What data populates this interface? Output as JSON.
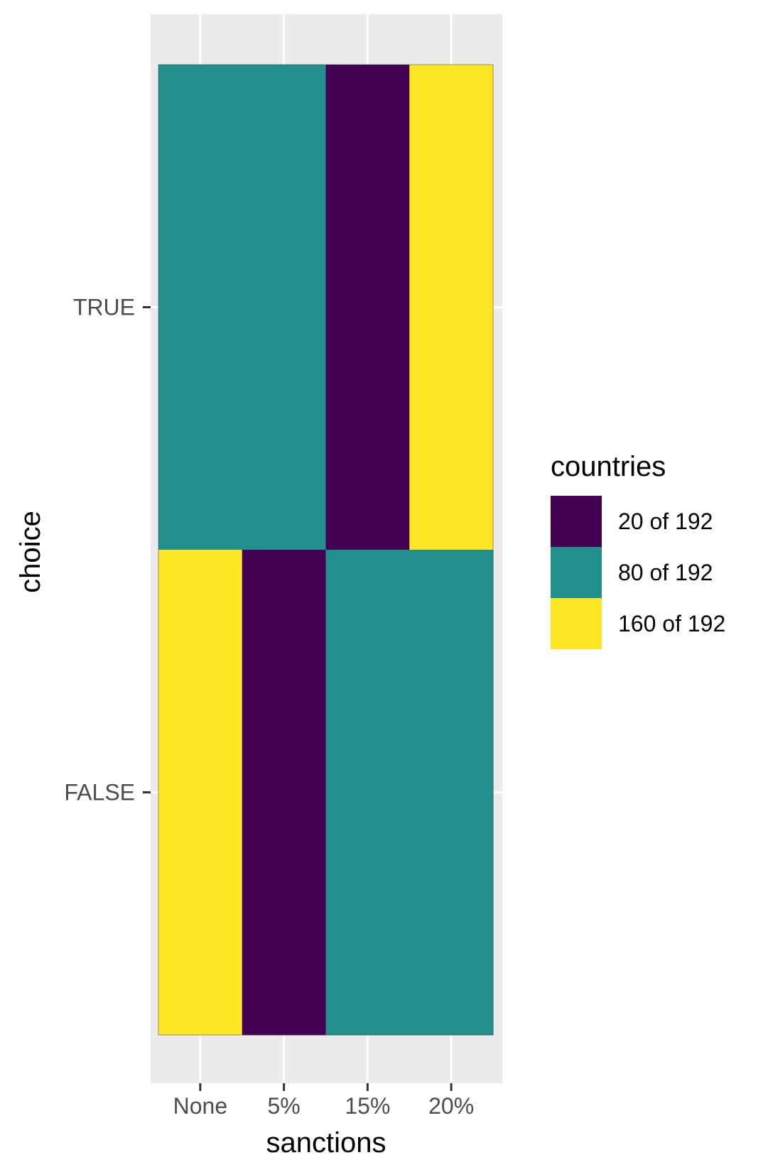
{
  "chart_data": {
    "type": "heatmap",
    "x_categories": [
      "None",
      "5%",
      "15%",
      "20%"
    ],
    "y_categories": [
      "TRUE",
      "FALSE"
    ],
    "xlabel": "sanctions",
    "ylabel": "choice",
    "legend": {
      "title": "countries",
      "position": "right",
      "entries": [
        {
          "label": "20 of 192",
          "color": "#440154"
        },
        {
          "label": "80 of 192",
          "color": "#21908C"
        },
        {
          "label": "160 of 192",
          "color": "#FDE725"
        }
      ]
    },
    "cells": [
      {
        "x": "None",
        "y": "TRUE",
        "value": "80 of 192"
      },
      {
        "x": "5%",
        "y": "TRUE",
        "value": "80 of 192"
      },
      {
        "x": "15%",
        "y": "TRUE",
        "value": "20 of 192"
      },
      {
        "x": "20%",
        "y": "TRUE",
        "value": "160 of 192"
      },
      {
        "x": "None",
        "y": "FALSE",
        "value": "160 of 192"
      },
      {
        "x": "5%",
        "y": "FALSE",
        "value": "20 of 192"
      },
      {
        "x": "15%",
        "y": "FALSE",
        "value": "80 of 192"
      },
      {
        "x": "20%",
        "y": "FALSE",
        "value": "80 of 192"
      }
    ],
    "panel_background": "#EBEBEB",
    "grid": true
  }
}
